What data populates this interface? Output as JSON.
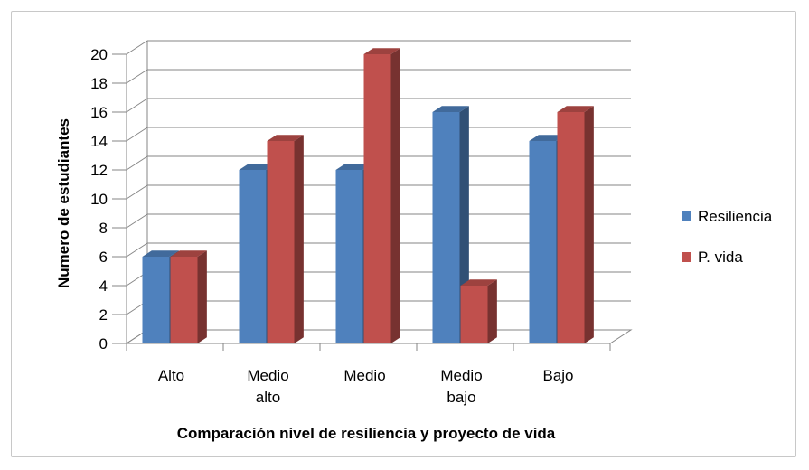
{
  "chart_data": {
    "type": "bar",
    "title": "",
    "xlabel": "Comparación nivel de resiliencia y proyecto de vida",
    "ylabel": "Numero de estudiantes",
    "ylim": [
      0,
      20
    ],
    "yticks": [
      "0",
      "2",
      "4",
      "6",
      "8",
      "10",
      "12",
      "14",
      "16",
      "18",
      "20"
    ],
    "categories": [
      [
        "Alto"
      ],
      [
        "Medio",
        "alto"
      ],
      [
        "Medio"
      ],
      [
        "Medio",
        "bajo"
      ],
      [
        "Bajo"
      ]
    ],
    "series": [
      {
        "name": "Resiliencia",
        "values": [
          6,
          12,
          12,
          16,
          14
        ],
        "color": "#4f81bd"
      },
      {
        "name": "P. vida",
        "values": [
          6,
          14,
          20,
          4,
          16
        ],
        "color": "#c0504d"
      }
    ],
    "legend_position": "right",
    "grid": true,
    "style": "3d-clustered-column"
  }
}
